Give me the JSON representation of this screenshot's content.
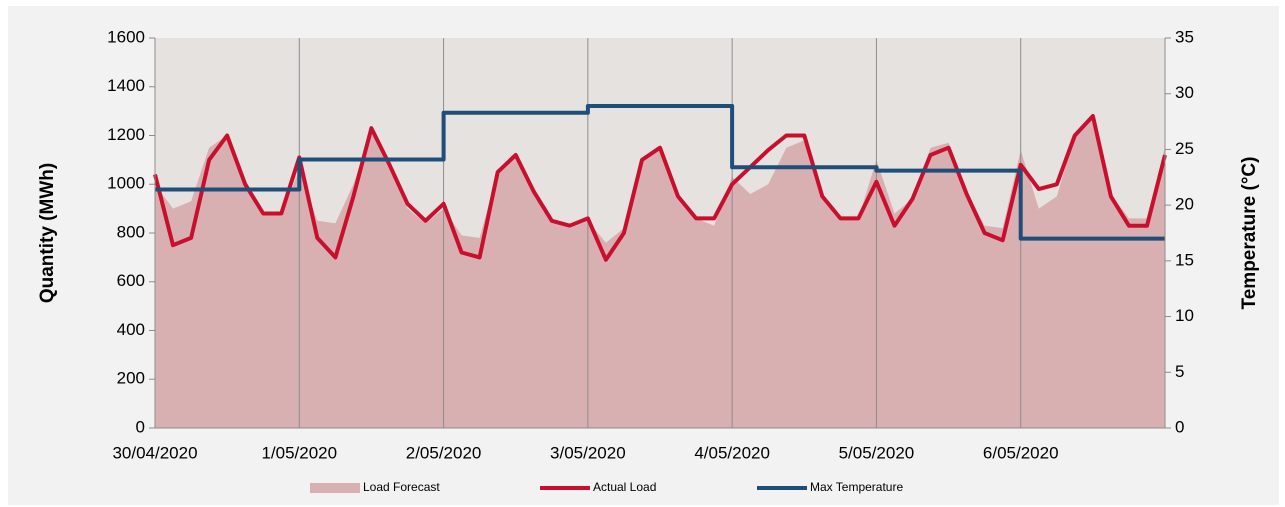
{
  "chart_data": {
    "type": "combo",
    "x": [
      0,
      0.125,
      0.25,
      0.375,
      0.5,
      0.625,
      0.75,
      0.875,
      1,
      1.125,
      1.25,
      1.375,
      1.5,
      1.625,
      1.75,
      1.875,
      2,
      2.125,
      2.25,
      2.375,
      2.5,
      2.625,
      2.75,
      2.875,
      3,
      3.125,
      3.25,
      3.375,
      3.5,
      3.625,
      3.75,
      3.875,
      4,
      4.125,
      4.25,
      4.375,
      4.5,
      4.625,
      4.75,
      4.875,
      5,
      5.125,
      5.25,
      5.375,
      5.5,
      5.625,
      5.75,
      5.875,
      6,
      6.125,
      6.25,
      6.375,
      6.5,
      6.625,
      6.75,
      6.875,
      7
    ],
    "xlim": [
      0,
      7
    ],
    "xticks": [
      {
        "value": 0,
        "label": "30/04/2020"
      },
      {
        "value": 1,
        "label": "1/05/2020"
      },
      {
        "value": 2,
        "label": "2/05/2020"
      },
      {
        "value": 3,
        "label": "3/05/2020"
      },
      {
        "value": 4,
        "label": "4/05/2020"
      },
      {
        "value": 5,
        "label": "5/05/2020"
      },
      {
        "value": 6,
        "label": "6/05/2020"
      }
    ],
    "ylabel": "Quantity (MWh)",
    "y2label": "Temperature (°C)",
    "ylim": [
      0,
      1600
    ],
    "yticks": [
      0,
      200,
      400,
      600,
      800,
      1000,
      1200,
      1400,
      1600
    ],
    "y2lim": [
      0,
      35
    ],
    "y2ticks": [
      0,
      5,
      10,
      15,
      20,
      25,
      30,
      35
    ],
    "grid": true,
    "legend": "bottom",
    "series": [
      {
        "name": "Load Forecast",
        "kind": "area",
        "color": "#d9b0b2",
        "values": [
          1000,
          900,
          930,
          1150,
          1200,
          1020,
          880,
          870,
          1060,
          850,
          840,
          1000,
          1220,
          1080,
          900,
          840,
          900,
          790,
          780,
          1050,
          1120,
          970,
          850,
          820,
          850,
          760,
          820,
          1100,
          1150,
          960,
          860,
          830,
          1030,
          960,
          1000,
          1150,
          1180,
          960,
          860,
          860,
          1100,
          880,
          940,
          1150,
          1170,
          970,
          830,
          820,
          1140,
          900,
          950,
          1200,
          1280,
          960,
          860,
          860,
          1150
        ]
      },
      {
        "name": "Actual Load",
        "kind": "line",
        "color": "#c8102e",
        "values": [
          1040,
          750,
          780,
          1100,
          1200,
          1000,
          880,
          880,
          1110,
          780,
          700,
          950,
          1230,
          1080,
          920,
          850,
          920,
          720,
          700,
          1050,
          1120,
          970,
          850,
          830,
          860,
          690,
          800,
          1100,
          1150,
          950,
          860,
          860,
          1000,
          1070,
          1140,
          1200,
          1200,
          950,
          860,
          860,
          1010,
          830,
          940,
          1120,
          1150,
          960,
          800,
          770,
          1080,
          980,
          1000,
          1200,
          1280,
          950,
          830,
          830,
          1120
        ]
      },
      {
        "name": "Max Temperature",
        "kind": "line",
        "color": "#1f4e79",
        "axis": "y2",
        "x": [
          0,
          1,
          1,
          2,
          2,
          3,
          3,
          4,
          4,
          5,
          5,
          6,
          6,
          7
        ],
        "values": [
          21.4,
          21.4,
          24.1,
          24.1,
          28.3,
          28.3,
          28.9,
          28.9,
          23.4,
          23.4,
          23.1,
          23.1,
          17,
          17
        ]
      }
    ]
  }
}
